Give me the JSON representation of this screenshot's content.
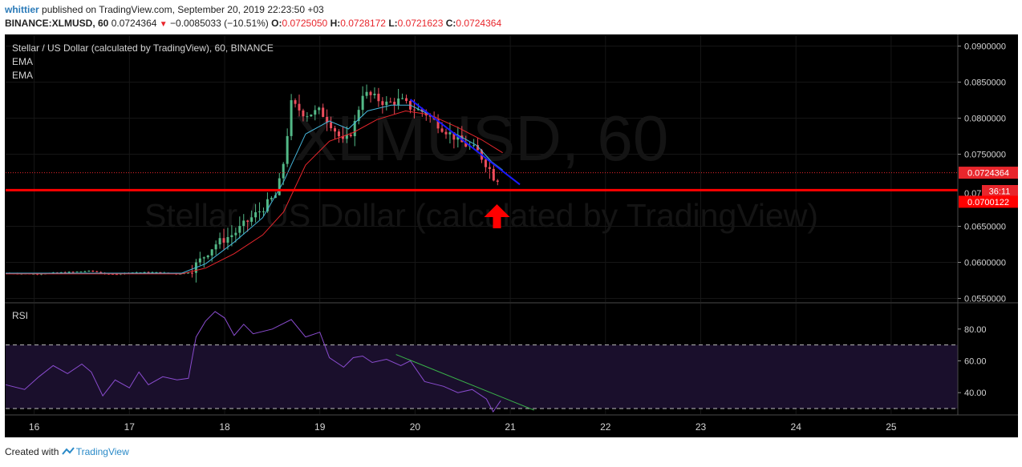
{
  "header": {
    "author": "whittier",
    "published_text": "published on TradingView.com, September 20, 2019 22:23:50 +03",
    "symbol": "BINANCE:XLMUSD, 60",
    "last": "0.0724364",
    "change_arrow": "▼",
    "change": "−0.0085033 (−10.51%)",
    "o_label": "O:",
    "o": "0.0725050",
    "h_label": "H:",
    "h": "0.0728172",
    "l_label": "L:",
    "l": "0.0721623",
    "c_label": "C:",
    "c": "0.0724364"
  },
  "footer": {
    "created_with": "Created with",
    "brand": "TradingView"
  },
  "colors": {
    "up": "#53b987",
    "down": "#eb4d5c",
    "ema_fast": "#45b5da",
    "ema_slow": "#e8262c",
    "rsi": "#8a4ccf",
    "rsi_band": "#1a0f2c",
    "level_line": "#ff0000",
    "trend_price": "#1a1aff",
    "trend_rsi": "#3ab54a",
    "background": "#000000"
  },
  "chart_data": {
    "type": "candlestick",
    "title": "Stellar / US Dollar (calculated by TradingView), 60, BINANCE",
    "watermark_symbol": "XLMUSD, 60",
    "watermark_name": "Stellar / US Dollar (calculated by TradingView)",
    "indicators": [
      "EMA",
      "EMA"
    ],
    "price_axis": {
      "ylim": [
        0.0545,
        0.0915
      ],
      "ticks": [
        "0.0900000",
        "0.0850000",
        "0.0800000",
        "0.0750000",
        "0.0650000",
        "0.0600000",
        "0.0550000"
      ],
      "tick_values": [
        0.09,
        0.085,
        0.08,
        0.075,
        0.065,
        0.06,
        0.055
      ],
      "partial_tick": "0.07",
      "last_price_label": "0.0724364",
      "countdown_label": "36:11",
      "level_label": "0.0700122"
    },
    "x_axis": {
      "xlim": [
        15.7,
        25.7
      ],
      "ticks": [
        "16",
        "17",
        "18",
        "19",
        "20",
        "21",
        "22",
        "23",
        "24",
        "25"
      ],
      "tick_values": [
        16,
        17,
        18,
        19,
        20,
        21,
        22,
        23,
        24,
        25
      ]
    },
    "level": 0.0700122,
    "last_price": 0.0724364,
    "price_keypoints": [
      [
        15.7,
        0.0585
      ],
      [
        16.0,
        0.0584
      ],
      [
        16.3,
        0.0586
      ],
      [
        16.6,
        0.0588
      ],
      [
        16.8,
        0.0583
      ],
      [
        17.0,
        0.0586
      ],
      [
        17.3,
        0.0586
      ],
      [
        17.5,
        0.0584
      ],
      [
        17.62,
        0.0586
      ],
      [
        17.75,
        0.0604
      ],
      [
        17.9,
        0.0625
      ],
      [
        18.1,
        0.064
      ],
      [
        18.25,
        0.0658
      ],
      [
        18.4,
        0.0675
      ],
      [
        18.55,
        0.0695
      ],
      [
        18.62,
        0.074
      ],
      [
        18.7,
        0.082
      ],
      [
        18.85,
        0.0805
      ],
      [
        19.0,
        0.081
      ],
      [
        19.1,
        0.0795
      ],
      [
        19.25,
        0.0765
      ],
      [
        19.35,
        0.0785
      ],
      [
        19.45,
        0.0835
      ],
      [
        19.55,
        0.083
      ],
      [
        19.7,
        0.082
      ],
      [
        19.85,
        0.0825
      ],
      [
        19.95,
        0.0815
      ],
      [
        20.1,
        0.0808
      ],
      [
        20.3,
        0.0785
      ],
      [
        20.5,
        0.0765
      ],
      [
        20.65,
        0.0755
      ],
      [
        20.78,
        0.073
      ],
      [
        20.85,
        0.0712
      ],
      [
        20.9,
        0.0724
      ]
    ],
    "ema_fast_keypoints": [
      [
        15.7,
        0.0585
      ],
      [
        17.55,
        0.0585
      ],
      [
        17.8,
        0.0598
      ],
      [
        18.1,
        0.0628
      ],
      [
        18.4,
        0.0662
      ],
      [
        18.62,
        0.0712
      ],
      [
        18.85,
        0.0778
      ],
      [
        19.1,
        0.0796
      ],
      [
        19.3,
        0.0785
      ],
      [
        19.5,
        0.081
      ],
      [
        19.75,
        0.0818
      ],
      [
        19.95,
        0.0818
      ],
      [
        20.15,
        0.0805
      ],
      [
        20.4,
        0.078
      ],
      [
        20.65,
        0.0762
      ],
      [
        20.8,
        0.074
      ],
      [
        20.92,
        0.0728
      ]
    ],
    "ema_slow_keypoints": [
      [
        15.7,
        0.0584
      ],
      [
        17.55,
        0.0584
      ],
      [
        17.8,
        0.0592
      ],
      [
        18.1,
        0.0612
      ],
      [
        18.4,
        0.0638
      ],
      [
        18.62,
        0.067
      ],
      [
        18.85,
        0.0735
      ],
      [
        19.1,
        0.0768
      ],
      [
        19.35,
        0.078
      ],
      [
        19.6,
        0.0798
      ],
      [
        19.9,
        0.081
      ],
      [
        20.15,
        0.0805
      ],
      [
        20.45,
        0.0787
      ],
      [
        20.7,
        0.077
      ],
      [
        20.92,
        0.0752
      ]
    ],
    "rsi": {
      "label": "RSI",
      "ylim": [
        26.5,
        96
      ],
      "ticks": [
        "80.00",
        "60.00",
        "40.00"
      ],
      "tick_values": [
        80,
        60,
        40
      ],
      "bands": [
        70,
        30
      ],
      "keypoints": [
        [
          15.7,
          45
        ],
        [
          15.9,
          42
        ],
        [
          16.05,
          50
        ],
        [
          16.2,
          57
        ],
        [
          16.35,
          52
        ],
        [
          16.5,
          58
        ],
        [
          16.6,
          53
        ],
        [
          16.72,
          38
        ],
        [
          16.85,
          48
        ],
        [
          17.0,
          43
        ],
        [
          17.1,
          53
        ],
        [
          17.2,
          45
        ],
        [
          17.35,
          50
        ],
        [
          17.5,
          48
        ],
        [
          17.62,
          49
        ],
        [
          17.7,
          75
        ],
        [
          17.8,
          85
        ],
        [
          17.9,
          91
        ],
        [
          18.0,
          87
        ],
        [
          18.1,
          76
        ],
        [
          18.2,
          83
        ],
        [
          18.3,
          77
        ],
        [
          18.5,
          80
        ],
        [
          18.7,
          86
        ],
        [
          18.85,
          75
        ],
        [
          19.0,
          78
        ],
        [
          19.1,
          62
        ],
        [
          19.25,
          56
        ],
        [
          19.35,
          62
        ],
        [
          19.45,
          63
        ],
        [
          19.55,
          59
        ],
        [
          19.7,
          61
        ],
        [
          19.85,
          57
        ],
        [
          19.95,
          60
        ],
        [
          20.1,
          47
        ],
        [
          20.3,
          44
        ],
        [
          20.45,
          40
        ],
        [
          20.6,
          42
        ],
        [
          20.75,
          36
        ],
        [
          20.82,
          28
        ],
        [
          20.9,
          35
        ]
      ]
    },
    "annotations": {
      "price_trendline": [
        [
          19.95,
          0.0826
        ],
        [
          21.1,
          0.0708
        ]
      ],
      "rsi_trendline": [
        [
          19.8,
          64
        ],
        [
          21.25,
          29
        ]
      ],
      "arrow": {
        "x": 20.86,
        "y": 0.0665,
        "direction": "up"
      }
    }
  }
}
